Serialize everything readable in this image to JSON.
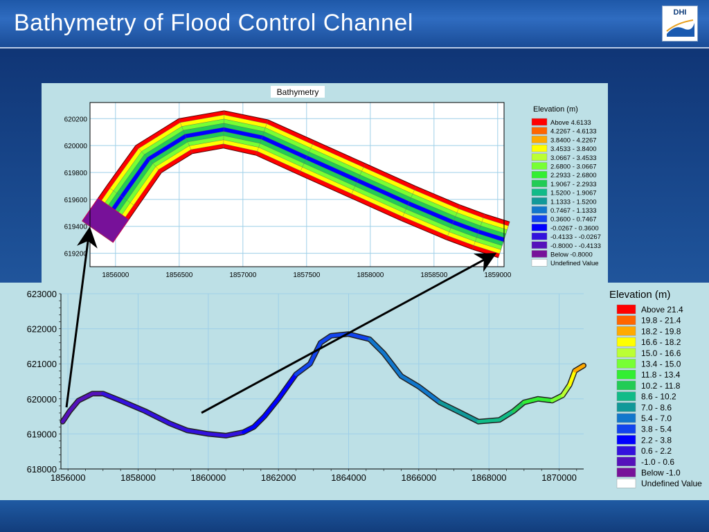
{
  "header": {
    "title": "Bathymetry of Flood Control Channel",
    "logo_text": "DHI"
  },
  "chart_data": [
    {
      "type": "heatmap",
      "title": "Bathymetry",
      "xlabel": "",
      "ylabel": "",
      "xlim": [
        1855800,
        1859050
      ],
      "ylim": [
        619100,
        620320
      ],
      "x_ticks": [
        "1856000",
        "1856500",
        "1857000",
        "1857500",
        "1858000",
        "1858500",
        "1859000"
      ],
      "y_ticks": [
        "620200",
        "620000",
        "619800",
        "619600",
        "619400",
        "619200"
      ],
      "grid": true,
      "legend": {
        "title": "Elevation (m)",
        "placement": "right",
        "entries": [
          {
            "label": "Above     4.6133",
            "color": "#ff0000"
          },
          {
            "label": "4.2267 -  4.6133",
            "color": "#ff6600"
          },
          {
            "label": "3.8400 -  4.2267",
            "color": "#ffaa00"
          },
          {
            "label": "3.4533 -  3.8400",
            "color": "#ffff00"
          },
          {
            "label": "3.0667 -  3.4533",
            "color": "#bbff33"
          },
          {
            "label": "2.6800 -  3.0667",
            "color": "#77ff33"
          },
          {
            "label": "2.2933 -  2.6800",
            "color": "#33ee33"
          },
          {
            "label": "1.9067 -  2.2933",
            "color": "#22cc55"
          },
          {
            "label": "1.5200 -  1.9067",
            "color": "#11bb88"
          },
          {
            "label": "1.1333 -  1.5200",
            "color": "#119999"
          },
          {
            "label": "0.7467 -  1.1333",
            "color": "#1177cc"
          },
          {
            "label": "0.3600 -  0.7467",
            "color": "#1144ee"
          },
          {
            "label": "-0.0267 -  0.3600",
            "color": "#0000ff"
          },
          {
            "label": "-0.4133 - -0.0267",
            "color": "#3311dd"
          },
          {
            "label": "-0.8000 - -0.4133",
            "color": "#5511bb"
          },
          {
            "label": "Below     -0.8000",
            "color": "#771199"
          },
          {
            "label": "Undefined Value",
            "color": "#ffffff"
          }
        ]
      },
      "channel_centerline": [
        [
          1855860,
          619360
        ],
        [
          1856050,
          619620
        ],
        [
          1856260,
          619900
        ],
        [
          1856550,
          620070
        ],
        [
          1856850,
          620120
        ],
        [
          1857150,
          620060
        ],
        [
          1857500,
          619910
        ],
        [
          1857900,
          619740
        ],
        [
          1858300,
          619570
        ],
        [
          1858650,
          619430
        ],
        [
          1858850,
          619360
        ],
        [
          1859050,
          619300
        ]
      ],
      "lateral_band_colors": [
        "#ff0000",
        "#ffff00",
        "#77ff33",
        "#22cc55",
        "#0000ff",
        "#22cc55",
        "#77ff33",
        "#ffff00",
        "#ff0000"
      ]
    },
    {
      "type": "line",
      "title": "",
      "xlabel": "",
      "ylabel": "",
      "xlim": [
        1855800,
        1870700
      ],
      "ylim": [
        618000,
        623000
      ],
      "x_ticks": [
        "1856000",
        "1858000",
        "1860000",
        "1862000",
        "1864000",
        "1866000",
        "1868000",
        "1870000"
      ],
      "y_ticks": [
        "623000",
        "622000",
        "621000",
        "620000",
        "619000",
        "618000"
      ],
      "grid": true,
      "series": [
        {
          "points": [
            [
              1855850,
              619350,
              -0.8
            ],
            [
              1856050,
              619650,
              0.0
            ],
            [
              1856300,
              619950,
              0.2
            ],
            [
              1856700,
              620150,
              0.4
            ],
            [
              1857000,
              620150,
              0.6
            ],
            [
              1857500,
              619950,
              0.8
            ],
            [
              1858200,
              619650,
              1.0
            ],
            [
              1858900,
              619300,
              1.3
            ],
            [
              1859400,
              619100,
              1.6
            ],
            [
              1860000,
              619000,
              1.8
            ],
            [
              1860500,
              618950,
              2.0
            ],
            [
              1861000,
              619050,
              2.3
            ],
            [
              1861300,
              619200,
              2.5
            ],
            [
              1861600,
              619500,
              2.9
            ],
            [
              1862000,
              620000,
              3.3
            ],
            [
              1862500,
              620700,
              3.8
            ],
            [
              1862900,
              621000,
              4.1
            ],
            [
              1863200,
              621600,
              4.4
            ],
            [
              1863500,
              621800,
              4.6
            ],
            [
              1864000,
              621850,
              5.0
            ],
            [
              1864600,
              621700,
              5.3
            ],
            [
              1865000,
              621300,
              5.6
            ],
            [
              1865500,
              620650,
              6.0
            ],
            [
              1866000,
              620350,
              6.4
            ],
            [
              1866600,
              619900,
              7.0
            ],
            [
              1867200,
              619600,
              7.6
            ],
            [
              1867700,
              619350,
              8.3
            ],
            [
              1868300,
              619400,
              9.0
            ],
            [
              1868700,
              619650,
              10.2
            ],
            [
              1869000,
              619900,
              11.3
            ],
            [
              1869400,
              620000,
              12.5
            ],
            [
              1869800,
              619950,
              13.8
            ],
            [
              1870100,
              620100,
              15.2
            ],
            [
              1870300,
              620400,
              16.8
            ],
            [
              1870450,
              620800,
              18.5
            ],
            [
              1870700,
              620950,
              20.0
            ]
          ]
        }
      ],
      "legend": {
        "title": "Elevation (m)",
        "placement": "right",
        "entries": [
          {
            "label": "Above 21.4",
            "color": "#ff0000"
          },
          {
            "label": "19.8 - 21.4",
            "color": "#ff6600"
          },
          {
            "label": "18.2 - 19.8",
            "color": "#ffaa00"
          },
          {
            "label": "16.6 - 18.2",
            "color": "#ffff00"
          },
          {
            "label": "15.0 - 16.6",
            "color": "#bbff33"
          },
          {
            "label": "13.4 - 15.0",
            "color": "#77ff33"
          },
          {
            "label": "11.8 - 13.4",
            "color": "#33ee33"
          },
          {
            "label": "10.2 - 11.8",
            "color": "#22cc55"
          },
          {
            "label": "8.6 - 10.2",
            "color": "#11bb88"
          },
          {
            "label": "7.0 -  8.6",
            "color": "#119999"
          },
          {
            "label": "5.4 -  7.0",
            "color": "#1177cc"
          },
          {
            "label": "3.8 -  5.4",
            "color": "#1144ee"
          },
          {
            "label": "2.2 -  3.8",
            "color": "#0000ff"
          },
          {
            "label": "0.6 -  2.2",
            "color": "#3311dd"
          },
          {
            "label": "-1.0 -  0.6",
            "color": "#5511bb"
          },
          {
            "label": "Below  -1.0",
            "color": "#771199"
          },
          {
            "label": "Undefined Value",
            "color": "#ffffff"
          }
        ]
      }
    }
  ]
}
